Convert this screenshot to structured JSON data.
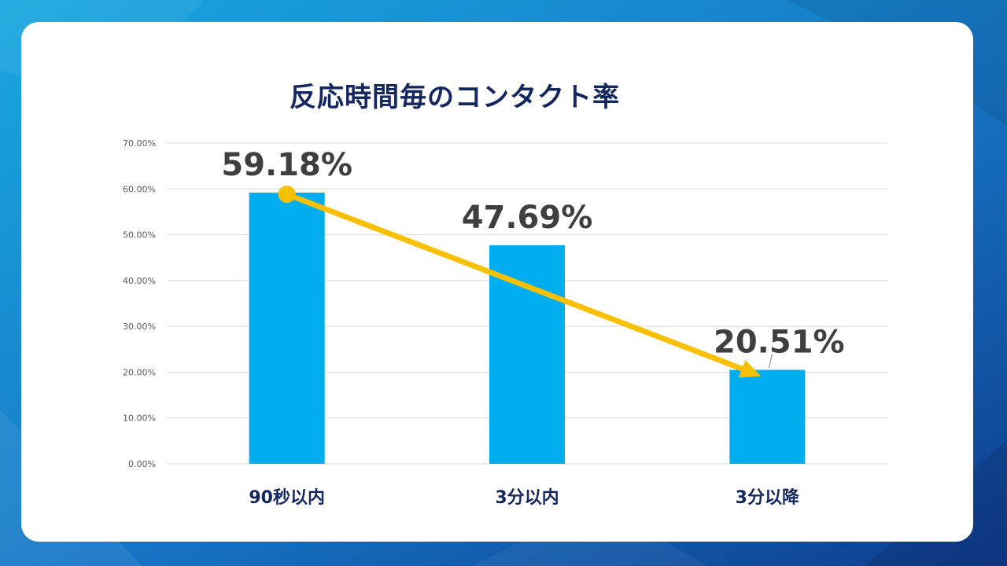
{
  "colors": {
    "bar": "#00aeef",
    "arrow": "#f8c000",
    "title": "#14275e",
    "grid": "#d9d9d9",
    "background_start": "#1aa3dc",
    "background_end": "#0f3f8f"
  },
  "chart_data": {
    "type": "bar",
    "title": "反応時間毎のコンタクト率",
    "categories": [
      "90秒以内",
      "3分以内",
      "3分以降"
    ],
    "values": [
      59.18,
      47.69,
      20.51
    ],
    "data_labels": [
      "59.18%",
      "47.69%",
      "20.51%"
    ],
    "ylim": [
      0,
      70
    ],
    "yticks": [
      0,
      10,
      20,
      30,
      40,
      50,
      60,
      70
    ],
    "ytick_labels": [
      "0.00%",
      "10.00%",
      "20.00%",
      "30.00%",
      "40.00%",
      "50.00%",
      "60.00%",
      "70.00%"
    ],
    "grid": true,
    "legend": "none",
    "annotation": {
      "type": "arrow",
      "from_category": "90秒以内",
      "from_value": 59.18,
      "to_category": "3分以降",
      "to_value": 20.51
    }
  }
}
